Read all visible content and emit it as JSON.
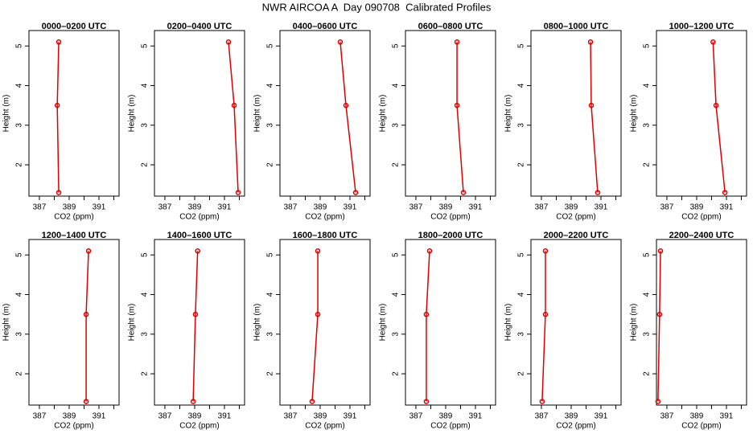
{
  "title": "NWR AIRCOA A  Day 090708  Calibrated Profiles",
  "chart_data": [
    {
      "type": "line",
      "title": "0000–0200 UTC",
      "x_label": "CO2 (ppm)",
      "y_label": "Height (m)",
      "x": [
        388.3,
        388.2,
        388.3
      ],
      "values": [
        5.1,
        3.5,
        1.3
      ],
      "color": "#dd0000",
      "xlim": [
        386.3,
        392.35
      ],
      "xticks": [
        387,
        389,
        391
      ],
      "xminor_ticks": [
        388,
        390,
        392
      ],
      "ylim": [
        1.21,
        5.39
      ],
      "yticks": [
        2,
        3,
        4,
        5
      ]
    },
    {
      "type": "line",
      "title": "0200–0400 UTC",
      "x_label": "CO2 (ppm)",
      "y_label": "Height (m)",
      "x": [
        391.27,
        391.65,
        391.92
      ],
      "values": [
        5.1,
        3.5,
        1.3
      ],
      "color": "#dd0000",
      "xlim": [
        386.3,
        392.35
      ],
      "xticks": [
        387,
        389,
        391
      ],
      "xminor_ticks": [
        388,
        390,
        392
      ],
      "ylim": [
        1.21,
        5.39
      ],
      "yticks": [
        2,
        3,
        4,
        5
      ]
    },
    {
      "type": "line",
      "title": "0400–0600 UTC",
      "x_label": "CO2 (ppm)",
      "y_label": "Height (m)",
      "x": [
        390.35,
        390.73,
        391.38
      ],
      "values": [
        5.1,
        3.5,
        1.3
      ],
      "color": "#dd0000",
      "xlim": [
        386.3,
        392.35
      ],
      "xticks": [
        387,
        389,
        391
      ],
      "xminor_ticks": [
        388,
        390,
        392
      ],
      "ylim": [
        1.21,
        5.39
      ],
      "yticks": [
        2,
        3,
        4,
        5
      ]
    },
    {
      "type": "line",
      "title": "0600–0800 UTC",
      "x_label": "CO2 (ppm)",
      "y_label": "Height (m)",
      "x": [
        389.76,
        389.76,
        390.19
      ],
      "values": [
        5.1,
        3.5,
        1.3
      ],
      "color": "#dd0000",
      "xlim": [
        386.3,
        392.35
      ],
      "xticks": [
        387,
        389,
        391
      ],
      "xminor_ticks": [
        388,
        390,
        392
      ],
      "ylim": [
        1.21,
        5.39
      ],
      "yticks": [
        2,
        3,
        4,
        5
      ]
    },
    {
      "type": "line",
      "title": "0800–1000 UTC",
      "x_label": "CO2 (ppm)",
      "y_label": "Height (m)",
      "x": [
        390.3,
        390.35,
        390.78
      ],
      "values": [
        5.1,
        3.5,
        1.3
      ],
      "color": "#dd0000",
      "xlim": [
        386.3,
        392.35
      ],
      "xticks": [
        387,
        389,
        391
      ],
      "xminor_ticks": [
        388,
        390,
        392
      ],
      "ylim": [
        1.21,
        5.39
      ],
      "yticks": [
        2,
        3,
        4,
        5
      ]
    },
    {
      "type": "line",
      "title": "1000–1200 UTC",
      "x_label": "CO2 (ppm)",
      "y_label": "Height (m)",
      "x": [
        390.1,
        390.3,
        390.9
      ],
      "values": [
        5.1,
        3.5,
        1.3
      ],
      "color": "#dd0000",
      "xlim": [
        386.3,
        392.35
      ],
      "xticks": [
        387,
        389,
        391
      ],
      "xminor_ticks": [
        388,
        390,
        392
      ],
      "ylim": [
        1.21,
        5.39
      ],
      "yticks": [
        2,
        3,
        4,
        5
      ]
    },
    {
      "type": "line",
      "title": "1200–1400 UTC",
      "x_label": "CO2 (ppm)",
      "y_label": "Height (m)",
      "x": [
        390.3,
        390.14,
        390.14
      ],
      "values": [
        5.1,
        3.5,
        1.3
      ],
      "color": "#dd0000",
      "xlim": [
        386.3,
        392.35
      ],
      "xticks": [
        387,
        389,
        391
      ],
      "xminor_ticks": [
        388,
        390,
        392
      ],
      "ylim": [
        1.21,
        5.39
      ],
      "yticks": [
        2,
        3,
        4,
        5
      ]
    },
    {
      "type": "line",
      "title": "1400–1600 UTC",
      "x_label": "CO2 (ppm)",
      "y_label": "Height (m)",
      "x": [
        389.2,
        389.05,
        388.9
      ],
      "values": [
        5.1,
        3.5,
        1.3
      ],
      "color": "#dd0000",
      "xlim": [
        386.3,
        392.35
      ],
      "xticks": [
        387,
        389,
        391
      ],
      "xminor_ticks": [
        388,
        390,
        392
      ],
      "ylim": [
        1.21,
        5.39
      ],
      "yticks": [
        2,
        3,
        4,
        5
      ]
    },
    {
      "type": "line",
      "title": "1600–1800 UTC",
      "x_label": "CO2 (ppm)",
      "y_label": "Height (m)",
      "x": [
        388.84,
        388.84,
        388.46
      ],
      "values": [
        5.1,
        3.5,
        1.3
      ],
      "color": "#dd0000",
      "xlim": [
        386.3,
        392.35
      ],
      "xticks": [
        387,
        389,
        391
      ],
      "xminor_ticks": [
        388,
        390,
        392
      ],
      "ylim": [
        1.21,
        5.39
      ],
      "yticks": [
        2,
        3,
        4,
        5
      ]
    },
    {
      "type": "line",
      "title": "1800–2000 UTC",
      "x_label": "CO2 (ppm)",
      "y_label": "Height (m)",
      "x": [
        387.92,
        387.7,
        387.7
      ],
      "values": [
        5.1,
        3.5,
        1.3
      ],
      "color": "#dd0000",
      "xlim": [
        386.3,
        392.35
      ],
      "xticks": [
        387,
        389,
        391
      ],
      "xminor_ticks": [
        388,
        390,
        392
      ],
      "ylim": [
        1.21,
        5.39
      ],
      "yticks": [
        2,
        3,
        4,
        5
      ]
    },
    {
      "type": "line",
      "title": "2000–2200 UTC",
      "x_label": "CO2 (ppm)",
      "y_label": "Height (m)",
      "x": [
        387.27,
        387.27,
        387.05
      ],
      "values": [
        5.1,
        3.5,
        1.3
      ],
      "color": "#dd0000",
      "xlim": [
        386.3,
        392.35
      ],
      "xticks": [
        387,
        389,
        391
      ],
      "xminor_ticks": [
        388,
        390,
        392
      ],
      "ylim": [
        1.21,
        5.39
      ],
      "yticks": [
        2,
        3,
        4,
        5
      ]
    },
    {
      "type": "line",
      "title": "2200–2400 UTC",
      "x_label": "CO2 (ppm)",
      "y_label": "Height (m)",
      "x": [
        386.57,
        386.51,
        386.4
      ],
      "values": [
        5.1,
        3.5,
        1.3
      ],
      "color": "#dd0000",
      "xlim": [
        386.3,
        392.35
      ],
      "xticks": [
        387,
        389,
        391
      ],
      "xminor_ticks": [
        388,
        390,
        392
      ],
      "ylim": [
        1.21,
        5.39
      ],
      "yticks": [
        2,
        3,
        4,
        5
      ]
    }
  ]
}
